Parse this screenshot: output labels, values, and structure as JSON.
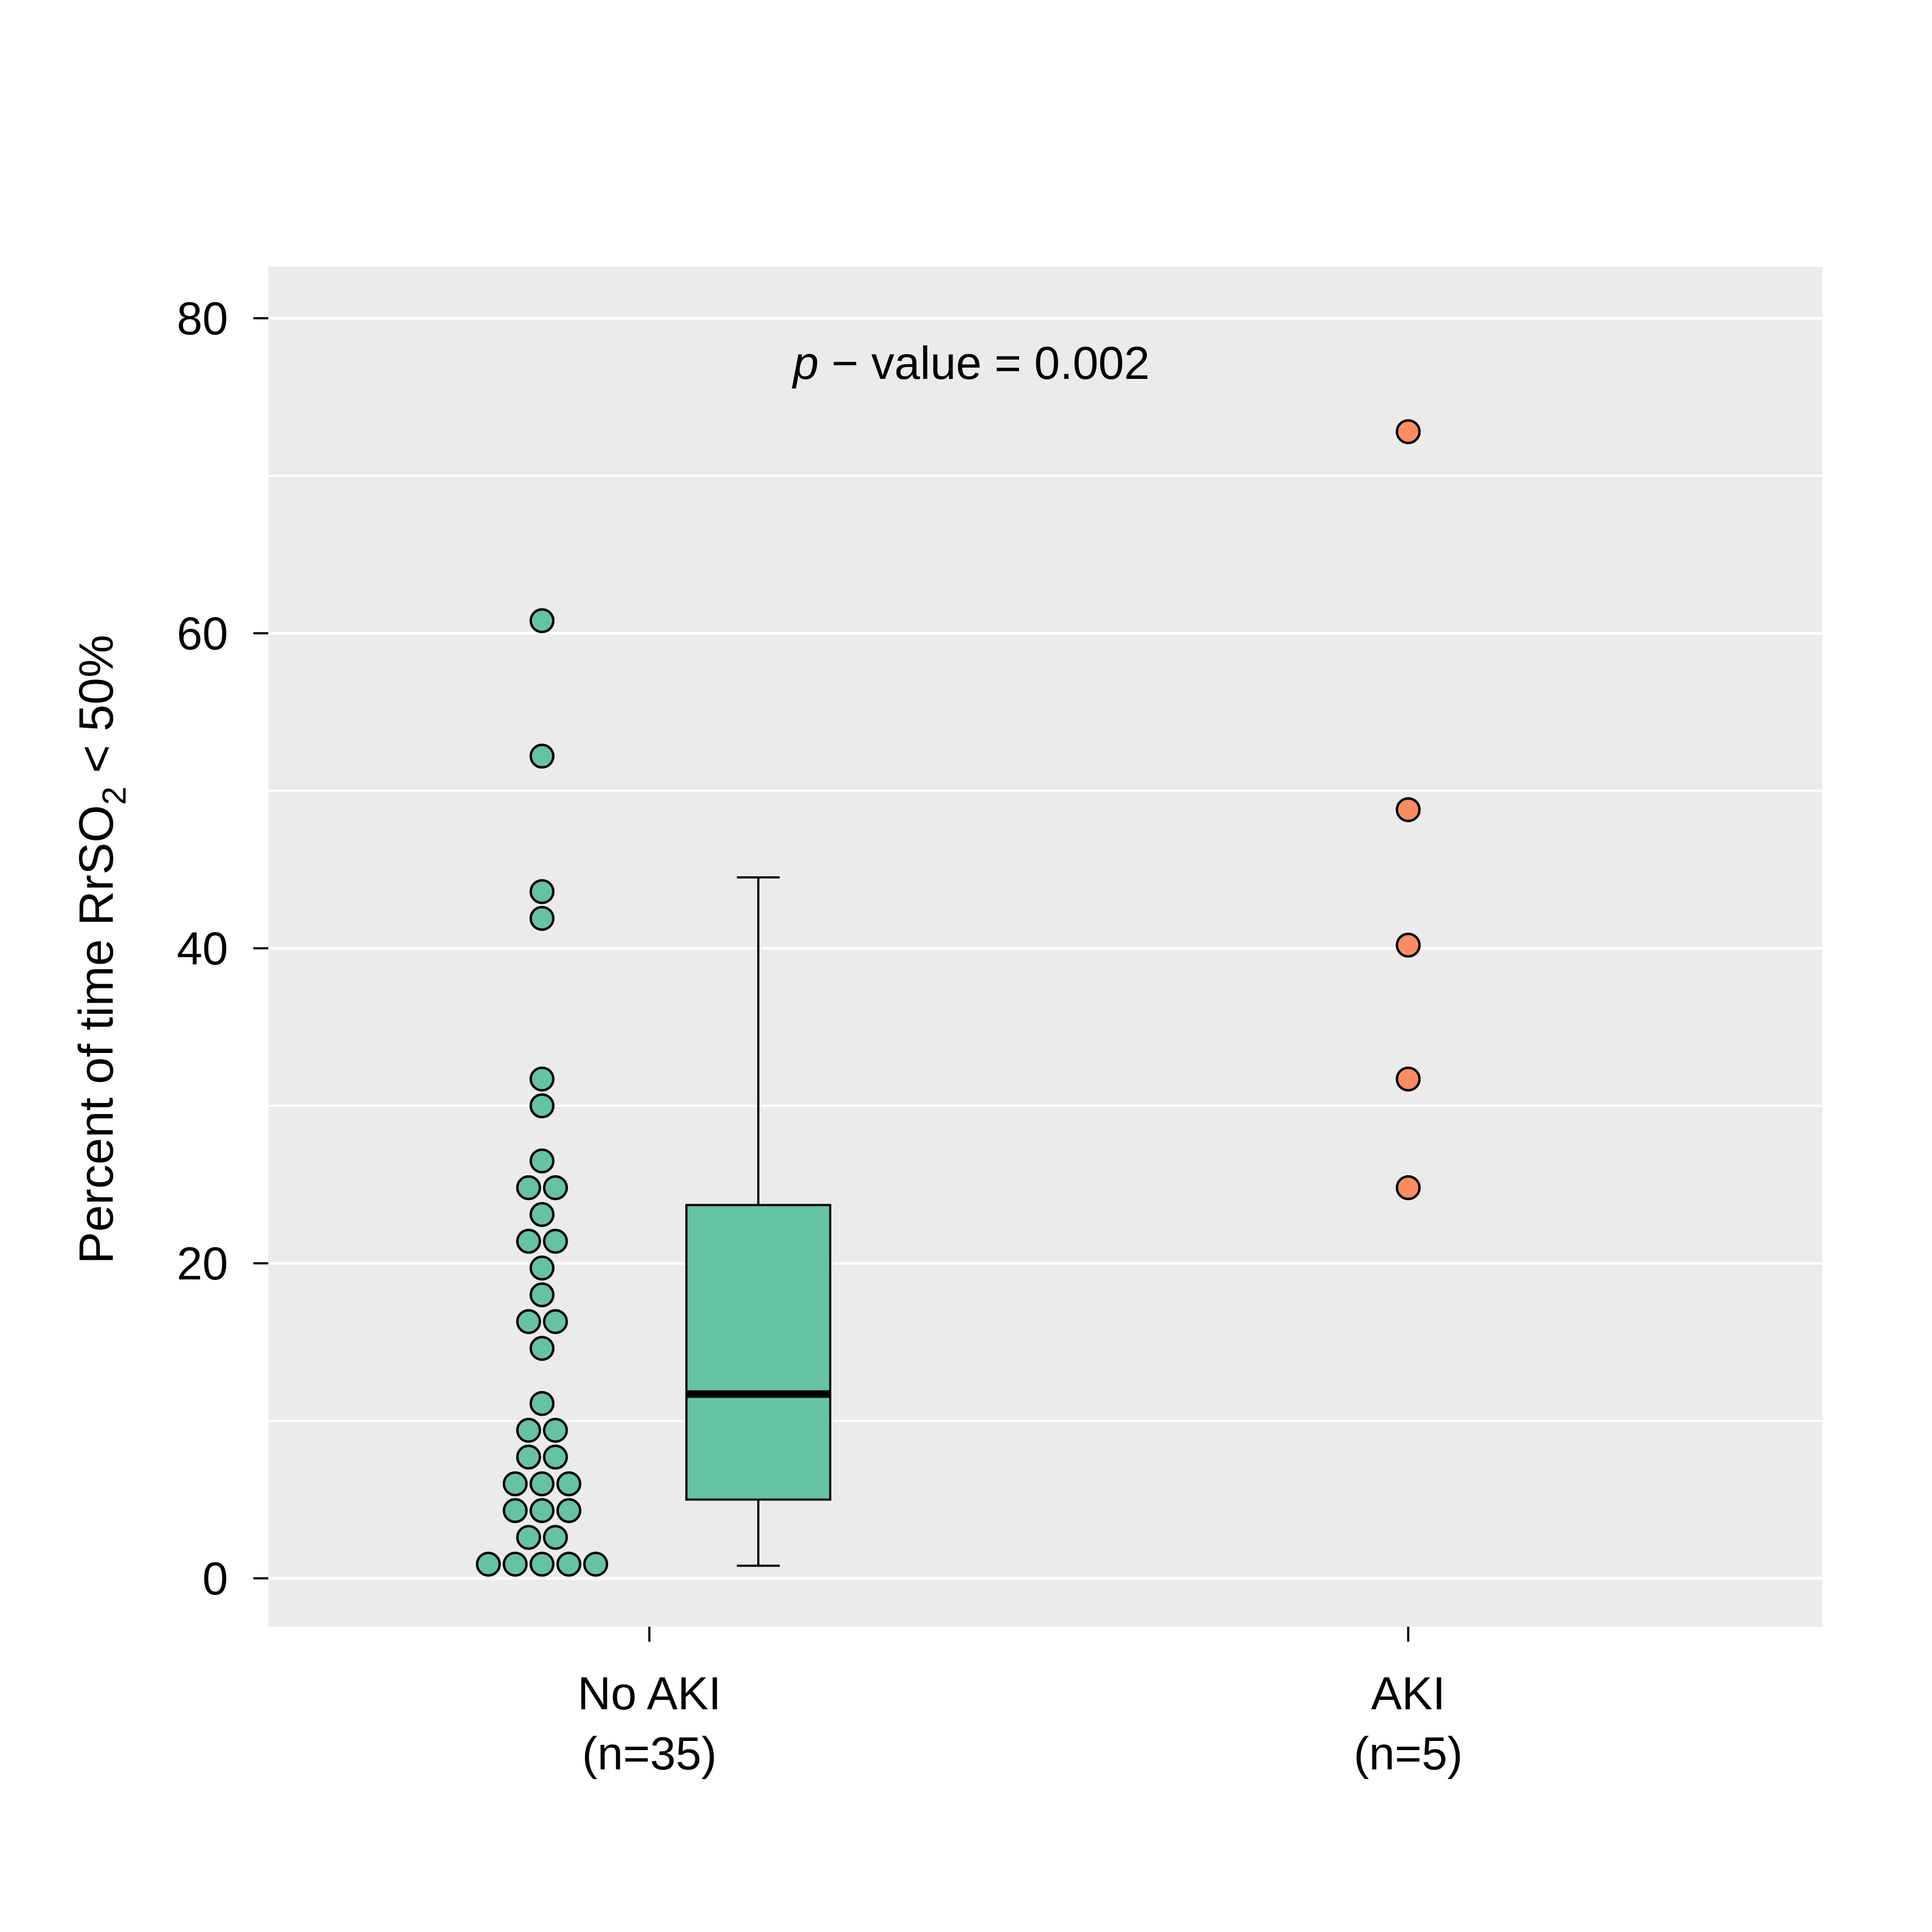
{
  "chart_data": {
    "type": "dotplot-with-boxplot",
    "ylabel": {
      "prefix": "Percent of time RrSO",
      "subscript": "2",
      "suffix": " < 50%"
    },
    "annotation": {
      "italic": "p",
      "rest": " − value = 0.002"
    },
    "ylim": [
      -3,
      83
    ],
    "y_ticks": [
      0,
      20,
      40,
      60,
      80
    ],
    "y_gridlines_minor": [
      10,
      30,
      50,
      70
    ],
    "grid": true,
    "background": "#ebebeb",
    "groups": [
      {
        "label_line1": "No AKI",
        "label_line2": "(n=35)",
        "color": "#66c2a5",
        "points": [
          0.9,
          0.9,
          0.9,
          0.9,
          0.9,
          2.6,
          2.6,
          4.3,
          4.3,
          4.3,
          6.0,
          6.0,
          6.0,
          7.7,
          7.7,
          9.4,
          9.4,
          11.1,
          14.6,
          16.3,
          16.3,
          18.0,
          19.7,
          21.4,
          21.4,
          23.1,
          24.8,
          24.8,
          26.5,
          30.0,
          31.7,
          41.9,
          43.6,
          52.2,
          60.8
        ],
        "box": {
          "q1": 5.0,
          "median": 11.7,
          "q3": 23.7,
          "whisker_low": 0.8,
          "whisker_high": 44.5
        }
      },
      {
        "label_line1": "AKI",
        "label_line2": "(n=5)",
        "color": "#fc8d62",
        "points": [
          24.8,
          31.7,
          40.2,
          48.8,
          72.8
        ]
      }
    ]
  }
}
